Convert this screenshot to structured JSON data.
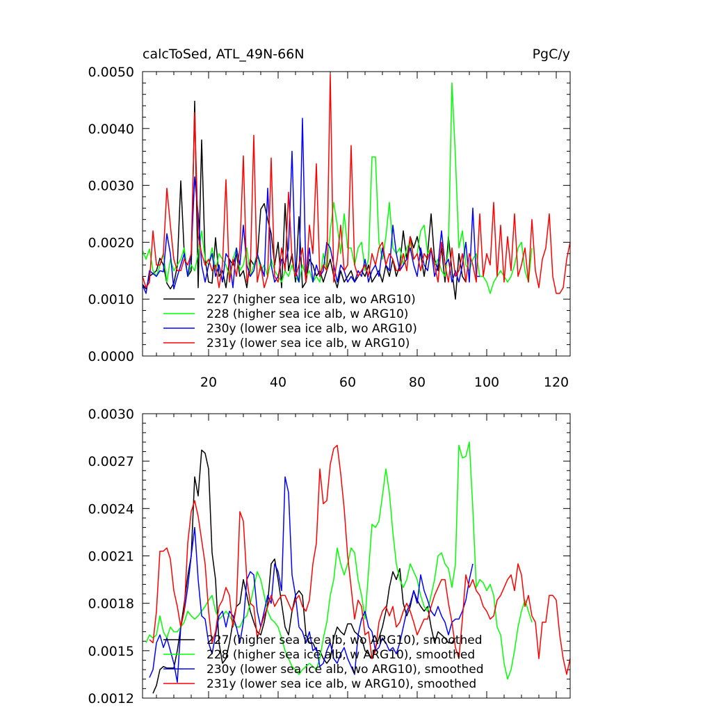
{
  "chart_data": [
    {
      "type": "line",
      "title": "calcToSed, ATL_49N-66N",
      "units": "PgC/y",
      "xlim": [
        1,
        124
      ],
      "ylim": [
        0.0,
        0.005
      ],
      "xticks": [
        20,
        40,
        60,
        80,
        100,
        120
      ],
      "yticks": [
        0.0,
        0.001,
        0.002,
        0.003,
        0.004,
        0.005
      ],
      "xtick_labels": [
        "20",
        "40",
        "60",
        "80",
        "100",
        "120"
      ],
      "ytick_labels": [
        "0.0000",
        "0.0010",
        "0.0020",
        "0.0030",
        "0.0040",
        "0.0050"
      ],
      "legend_position": "bottom-left",
      "series": [
        {
          "name": "227 (higher sea ice alb, wo ARG10)",
          "color": "#000000",
          "x_start": 1,
          "values": [
            0.00126,
            0.00118,
            0.0014,
            0.00145,
            0.0015,
            0.00172,
            0.0016,
            0.00128,
            0.00118,
            0.00128,
            0.00158,
            0.00308,
            0.0018,
            0.0014,
            0.0015,
            0.00448,
            0.0012,
            0.0038,
            0.0017,
            0.0013,
            0.00128,
            0.00208,
            0.0014,
            0.0015,
            0.0012,
            0.0017,
            0.0016,
            0.0018,
            0.0014,
            0.0015,
            0.0012,
            0.0017,
            0.0016,
            0.00172,
            0.00258,
            0.00268,
            0.0024,
            0.00215,
            0.0016,
            0.002,
            0.0012,
            0.00268,
            0.0015,
            0.0018,
            0.0013,
            0.00245,
            0.0012,
            0.0013,
            0.0017,
            0.0016,
            0.0014,
            0.0015,
            0.0013,
            0.0015,
            0.0017,
            0.0014,
            0.0012,
            0.0015,
            0.0013,
            0.0014,
            0.0015,
            0.0013,
            0.0014,
            0.0015,
            0.0014,
            0.0016,
            0.0013,
            0.0014,
            0.0015,
            0.0013,
            0.0016,
            0.0014,
            0.0017,
            0.0014,
            0.0016,
            0.0022,
            0.0017,
            0.0021,
            0.0019,
            0.0021,
            0.0018,
            0.0014,
            0.0018,
            0.0025,
            0.0017,
            0.0015,
            0.0019,
            0.0013,
            0.0021,
            0.0015,
            0.001,
            0.0018,
            0.0014,
            0.0013
          ]
        },
        {
          "name": "228 (higher sea ice alb, w ARG10)",
          "color": "#00ff00",
          "x_start": 1,
          "values": [
            0.00185,
            0.0017,
            0.00188,
            0.0015,
            0.0014,
            0.0016,
            0.0018,
            0.0013,
            0.0017,
            0.0015,
            0.0016,
            0.0017,
            0.0019,
            0.0014,
            0.0016,
            0.0015,
            0.0018,
            0.0022,
            0.0017,
            0.0016,
            0.0019,
            0.0015,
            0.0018,
            0.0017,
            0.0016,
            0.0014,
            0.0017,
            0.0019,
            0.0015,
            0.0016,
            0.0019,
            0.0014,
            0.0016,
            0.0018,
            0.0015,
            0.0016,
            0.0014,
            0.0017,
            0.0015,
            0.0014,
            0.0013,
            0.0015,
            0.0014,
            0.0016,
            0.0014,
            0.0013,
            0.0016,
            0.0014,
            0.0015,
            0.0013,
            0.0014,
            0.0013,
            0.0018,
            0.0015,
            0.0022,
            0.0027,
            0.0023,
            0.0018,
            0.0025,
            0.0019,
            0.0019,
            0.0016,
            0.0019,
            0.002,
            0.0015,
            0.0017,
            0.0035,
            0.0035,
            0.002,
            0.0017,
            0.0021,
            0.0027,
            0.0019,
            0.0018,
            0.0019,
            0.0016,
            0.0019,
            0.002,
            0.0017,
            0.0018,
            0.0022,
            0.0023,
            0.0018,
            0.0019,
            0.0016,
            0.0017,
            0.0015,
            0.0014,
            0.0019,
            0.0048,
            0.0035,
            0.0019,
            0.0022,
            0.0016,
            0.0015,
            0.0017,
            0.0018,
            0.0014,
            0.0014,
            0.0013,
            0.0011,
            0.0013,
            0.0014,
            0.0015,
            0.0014,
            0.0013,
            0.0014,
            0.0016,
            0.0019,
            0.002,
            0.0015,
            0.0013,
            0.0019
          ]
        },
        {
          "name": "230y (lower sea ice alb, wo ARG10)",
          "color": "#0000ff",
          "x_start": 1,
          "values": [
            0.00125,
            0.0011,
            0.0015,
            0.00145,
            0.0014,
            0.0015,
            0.00148,
            0.00215,
            0.0018,
            0.00118,
            0.0014,
            0.0016,
            0.0018,
            0.0014,
            0.0018,
            0.00315,
            0.0025,
            0.0016,
            0.0013,
            0.0016,
            0.0018,
            0.0014,
            0.0016,
            0.0013,
            0.0018,
            0.0017,
            0.0012,
            0.0019,
            0.0016,
            0.0023,
            0.0016,
            0.0014,
            0.0015,
            0.0018,
            0.0016,
            0.0014,
            0.00295,
            0.0016,
            0.0013,
            0.0014,
            0.0017,
            0.0016,
            0.0019,
            0.0036,
            0.0015,
            0.0013,
            0.00418,
            0.0014,
            0.0019,
            0.0013,
            0.0016,
            0.0014,
            0.0015,
            0.002,
            0.0019,
            0.0016,
            0.0013,
            0.0016,
            0.0015,
            0.0013,
            0.0014,
            0.0013,
            0.0015,
            0.0014,
            0.0017,
            0.0013,
            0.0015,
            0.0016,
            0.0014,
            0.0019,
            0.0016,
            0.0015,
            0.0023,
            0.0018,
            0.0015,
            0.0016,
            0.0017,
            0.0019,
            0.0016,
            0.0014,
            0.0019,
            0.0016,
            0.0015,
            0.0019,
            0.0014,
            0.0016,
            0.0022,
            0.0016,
            0.0017,
            0.0013,
            0.0015,
            0.0013,
            0.0016,
            0.002,
            0.0013,
            0.0026,
            0.0014,
            0.0014
          ]
        },
        {
          "name": "231y (lower sea ice alb, w ARG10)",
          "color": "#ff0000",
          "x_start": 1,
          "values": [
            0.0014,
            0.0012,
            0.0013,
            0.0022,
            0.0016,
            0.0016,
            0.0018,
            0.00295,
            0.0023,
            0.0017,
            0.0015,
            0.0015,
            0.0017,
            0.0016,
            0.0018,
            0.00428,
            0.0021,
            0.0018,
            0.0016,
            0.0017,
            0.0015,
            0.0016,
            0.0012,
            0.0016,
            0.0031,
            0.0013,
            0.0017,
            0.0014,
            0.0019,
            0.00352,
            0.0013,
            0.0015,
            0.00388,
            0.0013,
            0.0016,
            0.0012,
            0.0014,
            0.00348,
            0.0014,
            0.0013,
            0.0019,
            0.0015,
            0.00288,
            0.0017,
            0.0014,
            0.0016,
            0.0019,
            0.0013,
            0.0023,
            0.0018,
            0.00338,
            0.0014,
            0.0016,
            0.0015,
            0.00495,
            0.0013,
            0.0017,
            0.0023,
            0.0015,
            0.0016,
            0.0037,
            0.0016,
            0.0014,
            0.0015,
            0.0016,
            0.0014,
            0.0018,
            0.0016,
            0.0019,
            0.002,
            0.0016,
            0.0018,
            0.0017,
            0.0015,
            0.0015,
            0.0018,
            0.0015,
            0.0021,
            0.0017,
            0.0018,
            0.0015,
            0.0018,
            0.0017,
            0.0019,
            0.0016,
            0.0013,
            0.002,
            0.0016,
            0.0013,
            0.0019,
            0.0014,
            0.0015,
            0.0018,
            0.0013,
            0.0018,
            0.0016,
            0.0013,
            0.0025,
            0.0014,
            0.0018,
            0.0016,
            0.0027,
            0.0014,
            0.0023,
            0.0013,
            0.0021,
            0.0015,
            0.0025,
            0.0014,
            0.0016,
            0.0019,
            0.0013,
            0.0024,
            0.0015,
            0.0012,
            0.0017,
            0.0019,
            0.0025,
            0.0014,
            0.0011,
            0.0011,
            0.0012,
            0.0017,
            0.002
          ]
        }
      ]
    },
    {
      "type": "line",
      "xlim": [
        1,
        124
      ],
      "ylim": [
        0.0012,
        0.003
      ],
      "xticks": [
        20,
        40,
        60,
        80,
        100,
        120
      ],
      "yticks": [
        0.0012,
        0.0015,
        0.0018,
        0.0021,
        0.0024,
        0.0027,
        0.003
      ],
      "ytick_labels": [
        "0.0012",
        "0.0015",
        "0.0018",
        "0.0021",
        "0.0024",
        "0.0027",
        "0.0030"
      ],
      "legend_position": "bottom-left",
      "series": [
        {
          "name": "227 (higher sea ice alb, wo ARG10), smoothed",
          "color": "#000000",
          "x_start": 4,
          "values": [
            0.00123,
            0.00128,
            0.00138,
            0.0014,
            0.00139,
            0.00139,
            0.00139,
            0.0015,
            0.00165,
            0.0018,
            0.00197,
            0.0021,
            0.0026,
            0.00248,
            0.00277,
            0.00275,
            0.00265,
            0.00212,
            0.00195,
            0.00155,
            0.00142,
            0.00145,
            0.00155,
            0.00168,
            0.00178,
            0.0018,
            0.00195,
            0.00185,
            0.00175,
            0.00168,
            0.00162,
            0.0016,
            0.00168,
            0.0018,
            0.00205,
            0.00208,
            0.00195,
            0.0018,
            0.00165,
            0.0016,
            0.00175,
            0.00185,
            0.00188,
            0.00185,
            0.0016,
            0.00155,
            0.00155,
            0.0015,
            0.0015,
            0.00145,
            0.00142,
            0.00145,
            0.00158,
            0.00165,
            0.00162,
            0.0016,
            0.00167,
            0.00167,
            0.00162,
            0.0016,
            0.00158,
            0.0015,
            0.00148,
            0.00145,
            0.00152,
            0.00158,
            0.00165,
            0.00175,
            0.0019,
            0.002,
            0.00195,
            0.00202,
            0.0018,
            0.00172,
            0.00178,
            0.00188,
            0.00182,
            0.00178,
            0.00175,
            0.00178,
            0.00165,
            0.00155,
            0.00162,
            0.0016,
            0.00158,
            0.00155,
            0.00155,
            0.00158
          ]
        },
        {
          "name": "228 (higher sea ice alb, w ARG10), smoothed",
          "color": "#00ff00",
          "x_start": 2,
          "values": [
            0.00155,
            0.0016,
            0.00158,
            0.0016,
            0.00172,
            0.00162,
            0.00158,
            0.00165,
            0.00162,
            0.00162,
            0.00165,
            0.00168,
            0.00175,
            0.00172,
            0.0017,
            0.00172,
            0.00175,
            0.00178,
            0.00182,
            0.00185,
            0.00175,
            0.0017,
            0.00172,
            0.00175,
            0.00172,
            0.00168,
            0.00165,
            0.00165,
            0.0017,
            0.00172,
            0.0018,
            0.0019,
            0.002,
            0.00195,
            0.00185,
            0.00175,
            0.0017,
            0.00168,
            0.00165,
            0.00158,
            0.0015,
            0.00145,
            0.0014,
            0.00138,
            0.00135,
            0.00138,
            0.0014,
            0.00142,
            0.0014,
            0.00138,
            0.00145,
            0.00158,
            0.00168,
            0.00185,
            0.00195,
            0.00215,
            0.00205,
            0.00198,
            0.00205,
            0.00215,
            0.00212,
            0.00195,
            0.00185,
            0.0017,
            0.002,
            0.0023,
            0.00228,
            0.00232,
            0.00248,
            0.00265,
            0.0025,
            0.00225,
            0.00205,
            0.00195,
            0.0019,
            0.00195,
            0.00205,
            0.002,
            0.00195,
            0.00185,
            0.00178,
            0.00175,
            0.00185,
            0.00195,
            0.0021,
            0.00212,
            0.00205,
            0.00202,
            0.0019,
            0.00205,
            0.0028,
            0.00272,
            0.00273,
            0.00282,
            0.0024,
            0.0019,
            0.00195,
            0.00193,
            0.00188,
            0.00192,
            0.00185,
            0.00165,
            0.0016,
            0.00142,
            0.00132,
            0.00138,
            0.0015,
            0.00165,
            0.00175,
            0.00182,
            0.00175,
            0.00168
          ]
        },
        {
          "name": "230y (lower sea ice alb, wo ARG10), smoothed",
          "color": "#0000ff",
          "x_start": 3,
          "values": [
            0.00133,
            0.00138,
            0.00155,
            0.0016,
            0.00152,
            0.00158,
            0.0015,
            0.00142,
            0.0013,
            0.00165,
            0.00175,
            0.0019,
            0.0021,
            0.00228,
            0.00195,
            0.00172,
            0.0017,
            0.00155,
            0.00148,
            0.0016,
            0.00172,
            0.00175,
            0.00165,
            0.00175,
            0.00172,
            0.00165,
            0.00155,
            0.00168,
            0.00195,
            0.002,
            0.00198,
            0.00175,
            0.00165,
            0.00175,
            0.00185,
            0.0018,
            0.00205,
            0.002,
            0.00188,
            0.0026,
            0.0025,
            0.00198,
            0.00185,
            0.00165,
            0.00162,
            0.00155,
            0.00162,
            0.0015,
            0.00152,
            0.0014,
            0.00142,
            0.0015,
            0.00155,
            0.00145,
            0.00142,
            0.00148,
            0.00152,
            0.00145,
            0.0014,
            0.00135,
            0.0016,
            0.0017,
            0.00175,
            0.00165,
            0.00162,
            0.0015,
            0.00152,
            0.00158,
            0.00155,
            0.0015,
            0.00152,
            0.00148,
            0.00155,
            0.00165,
            0.00175,
            0.0018,
            0.00188,
            0.0018,
            0.00198,
            0.00188,
            0.00182,
            0.00175,
            0.00172,
            0.00178,
            0.00172,
            0.00168,
            0.0016,
            0.00168,
            0.0017,
            0.0017,
            0.00175,
            0.00182,
            0.00195,
            0.00205
          ]
        },
        {
          "name": "231y (lower sea ice alb, w ARG10), smoothed",
          "color": "#ff0000",
          "x_start": 3,
          "values": [
            0.00157,
            0.00155,
            0.00175,
            0.00213,
            0.00213,
            0.00215,
            0.00208,
            0.00188,
            0.00178,
            0.00165,
            0.00175,
            0.00218,
            0.00238,
            0.00245,
            0.00235,
            0.0022,
            0.00205,
            0.00175,
            0.00155,
            0.00162,
            0.00178,
            0.00182,
            0.0019,
            0.00185,
            0.00165,
            0.00178,
            0.00238,
            0.00232,
            0.00195,
            0.0018,
            0.00178,
            0.00158,
            0.00165,
            0.00172,
            0.00178,
            0.00185,
            0.00178,
            0.00182,
            0.00185,
            0.00185,
            0.0018,
            0.00175,
            0.00182,
            0.00185,
            0.00178,
            0.00175,
            0.00182,
            0.00205,
            0.00218,
            0.00265,
            0.00243,
            0.00245,
            0.00268,
            0.00278,
            0.0028,
            0.00262,
            0.0024,
            0.0021,
            0.0019,
            0.0017,
            0.00182,
            0.00178,
            0.0016,
            0.00162,
            0.00145,
            0.0015,
            0.00168,
            0.00175,
            0.00178,
            0.00172,
            0.00178,
            0.00165,
            0.00168,
            0.00175,
            0.0018,
            0.00175,
            0.00168,
            0.0016,
            0.00165,
            0.0017,
            0.0017,
            0.00178,
            0.00185,
            0.0019,
            0.00195,
            0.00195,
            0.0018,
            0.00168,
            0.00152,
            0.00145,
            0.0017,
            0.00198,
            0.0019,
            0.00195,
            0.00188,
            0.00185,
            0.00178,
            0.00175,
            0.0017,
            0.00172,
            0.00182,
            0.00185,
            0.0019,
            0.00195,
            0.00198,
            0.00188,
            0.00205,
            0.00198,
            0.00178,
            0.00185,
            0.00172,
            0.00168,
            0.00145,
            0.00168,
            0.00168,
            0.00185,
            0.00185,
            0.00182,
            0.0016,
            0.00145,
            0.00135,
            0.00145
          ]
        }
      ]
    }
  ]
}
